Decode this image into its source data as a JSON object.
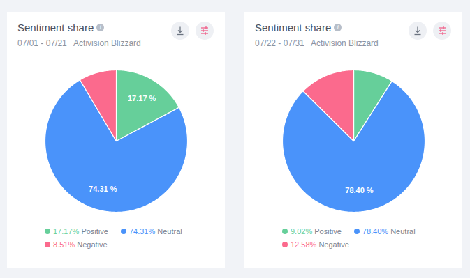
{
  "chart_data": [
    {
      "type": "pie",
      "title": "Sentiment share",
      "subtitle": "07/01 - 07/21   Activision Blizzard",
      "categories": [
        "Positive",
        "Neutral",
        "Negative"
      ],
      "values": [
        17.17,
        74.31,
        8.51
      ],
      "value_labels": [
        "17.17 %",
        "74.31 %",
        null
      ],
      "legend_labels": [
        "17.17%",
        "74.31%",
        "8.51%"
      ],
      "colors": [
        "#66cf9a",
        "#4a93fa",
        "#fb6a8d"
      ],
      "data_labels": true,
      "legend": "bottom"
    },
    {
      "type": "pie",
      "title": "Sentiment share",
      "subtitle": "07/22 - 07/31   Activision Blizzard",
      "categories": [
        "Positive",
        "Neutral",
        "Negative"
      ],
      "values": [
        9.02,
        78.4,
        12.58
      ],
      "value_labels": [
        null,
        "78.40 %",
        null
      ],
      "legend_labels": [
        "9.02%",
        "78.40%",
        "12.58%"
      ],
      "colors": [
        "#66cf9a",
        "#4a93fa",
        "#fb6a8d"
      ],
      "data_labels": true,
      "legend": "bottom"
    }
  ]
}
